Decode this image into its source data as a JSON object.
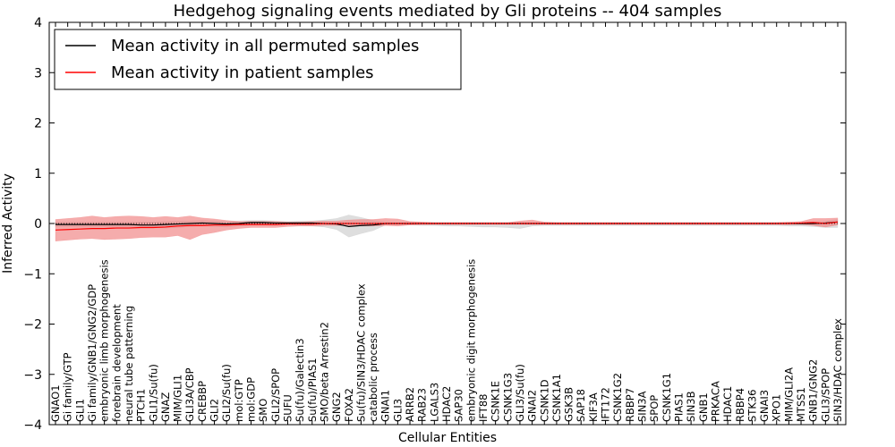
{
  "chart_data": {
    "type": "line",
    "title": "Hedgehog signaling events mediated by Gli proteins -- 404 samples",
    "xlabel": "Cellular Entities",
    "ylabel": "Inferred Activity",
    "ylim": [
      -4,
      4
    ],
    "yticks": [
      4,
      3,
      2,
      1,
      0,
      -1,
      -2,
      -3,
      -4
    ],
    "ytick_labels": [
      "4",
      "3",
      "2",
      "1",
      "0",
      "−1",
      "−2",
      "−3",
      "−4"
    ],
    "legend_position": "top-left",
    "categories": [
      "GNAO1",
      "Gi family/GTP",
      "GLI1",
      "Gi family/GNB1/GNG2/GDP",
      "embryonic limb morphogenesis",
      "forebrain development",
      "neural tube patterning",
      "PTCH1",
      "GLI1/Su(fu)",
      "GNAZ",
      "MIM/GLI1",
      "GLI3A/CBP",
      "CREBBP",
      "GLI2",
      "GLI2/Su(fu)",
      "mol:GTP",
      "mol:GDP",
      "SMO",
      "GLI2/SPOP",
      "SUFU",
      "Su(fu)/Galectin3",
      "Su(fu)/PIAS1",
      "SMO/beta Arrestin2",
      "GNG2",
      "FOXA2",
      "Su(fu)/SIN3/HDAC complex",
      "catabolic process",
      "GNAI1",
      "GLI3",
      "ARRB2",
      "RAB23",
      "LGALS3",
      "HDAC2",
      "SAP30",
      "embryonic digit morphogenesis",
      "IFT88",
      "CSNK1E",
      "CSNK1G3",
      "GLI3/Su(fu)",
      "GNAI2",
      "CSNK1D",
      "CSNK1A1",
      "GSK3B",
      "SAP18",
      "KIF3A",
      "IFT172",
      "CSNK1G2",
      "RBBP7",
      "SIN3A",
      "SPOP",
      "CSNK1G1",
      "PIAS1",
      "SIN3B",
      "GNB1",
      "PRKACA",
      "HDAC1",
      "RBBP4",
      "STK36",
      "GNAI3",
      "XPO1",
      "MIM/GLI2A",
      "MTSS1",
      "GNB1/GNG2",
      "GLI3/SPOP",
      "SIN3/HDAC complex"
    ],
    "series": [
      {
        "name": "Mean activity in all permuted samples",
        "color": "#000000",
        "values": [
          -0.02,
          -0.02,
          -0.02,
          -0.02,
          -0.02,
          -0.02,
          -0.02,
          -0.03,
          -0.03,
          -0.02,
          -0.01,
          0.0,
          0.01,
          0.0,
          -0.01,
          0.0,
          0.02,
          0.02,
          0.01,
          0.01,
          0.01,
          0.01,
          0.0,
          -0.01,
          -0.06,
          -0.04,
          -0.03,
          0.0,
          0.0,
          0.0,
          0.0,
          0.0,
          0.0,
          0.0,
          0.0,
          0.0,
          0.0,
          0.0,
          0.0,
          0.0,
          0.0,
          0.0,
          0.0,
          0.0,
          0.0,
          0.0,
          0.0,
          0.0,
          0.0,
          0.0,
          0.0,
          0.0,
          0.0,
          0.0,
          0.0,
          0.0,
          0.0,
          0.0,
          0.0,
          0.0,
          0.0,
          0.0,
          0.0,
          0.01,
          0.03
        ],
        "band": {
          "color": "#c8c8c8",
          "upper": [
            0.03,
            0.03,
            0.03,
            0.03,
            0.03,
            0.03,
            0.03,
            0.03,
            0.03,
            0.04,
            0.05,
            0.05,
            0.06,
            0.05,
            0.04,
            0.05,
            0.06,
            0.06,
            0.05,
            0.04,
            0.05,
            0.05,
            0.07,
            0.1,
            0.17,
            0.12,
            0.06,
            0.03,
            0.02,
            0.02,
            0.02,
            0.02,
            0.02,
            0.02,
            0.02,
            0.02,
            0.02,
            0.02,
            0.02,
            0.02,
            0.02,
            0.02,
            0.02,
            0.02,
            0.02,
            0.02,
            0.02,
            0.02,
            0.02,
            0.02,
            0.02,
            0.02,
            0.02,
            0.02,
            0.02,
            0.02,
            0.02,
            0.02,
            0.02,
            0.02,
            0.02,
            0.02,
            0.03,
            0.05,
            0.08
          ],
          "lower": [
            -0.07,
            -0.07,
            -0.07,
            -0.07,
            -0.07,
            -0.07,
            -0.07,
            -0.07,
            -0.08,
            -0.09,
            -0.08,
            -0.06,
            -0.05,
            -0.06,
            -0.07,
            -0.05,
            -0.03,
            -0.03,
            -0.04,
            -0.03,
            -0.04,
            -0.05,
            -0.07,
            -0.12,
            -0.27,
            -0.2,
            -0.14,
            -0.03,
            -0.02,
            -0.03,
            -0.04,
            -0.04,
            -0.05,
            -0.05,
            -0.06,
            -0.07,
            -0.07,
            -0.08,
            -0.1,
            -0.05,
            -0.04,
            -0.04,
            -0.04,
            -0.04,
            -0.04,
            -0.04,
            -0.04,
            -0.04,
            -0.04,
            -0.04,
            -0.04,
            -0.04,
            -0.04,
            -0.04,
            -0.04,
            -0.04,
            -0.04,
            -0.04,
            -0.04,
            -0.04,
            -0.05,
            -0.05,
            -0.06,
            -0.08,
            -0.08
          ]
        }
      },
      {
        "name": "Mean activity in patient samples",
        "color": "#ff0000",
        "values": [
          -0.13,
          -0.12,
          -0.11,
          -0.1,
          -0.1,
          -0.09,
          -0.09,
          -0.08,
          -0.08,
          -0.07,
          -0.05,
          -0.04,
          -0.04,
          -0.03,
          -0.03,
          -0.02,
          -0.02,
          -0.02,
          -0.02,
          -0.01,
          -0.01,
          -0.01,
          0.0,
          0.0,
          0.0,
          0.0,
          0.0,
          0.0,
          0.0,
          0.0,
          0.0,
          0.0,
          0.0,
          0.0,
          0.0,
          0.0,
          0.0,
          0.0,
          0.0,
          0.0,
          0.0,
          0.0,
          0.0,
          0.0,
          0.0,
          0.0,
          0.0,
          0.0,
          0.0,
          0.0,
          0.0,
          0.0,
          0.0,
          0.0,
          0.0,
          0.0,
          0.0,
          0.0,
          0.0,
          0.0,
          0.0,
          0.01,
          0.02,
          0.0,
          0.03
        ],
        "band": {
          "color": "#f08080",
          "upper": [
            0.08,
            0.1,
            0.12,
            0.15,
            0.12,
            0.14,
            0.15,
            0.14,
            0.12,
            0.14,
            0.12,
            0.15,
            0.11,
            0.09,
            0.06,
            0.04,
            0.04,
            0.04,
            0.04,
            0.03,
            0.03,
            0.04,
            0.05,
            0.05,
            0.07,
            0.08,
            0.08,
            0.1,
            0.09,
            0.04,
            0.03,
            0.02,
            0.02,
            0.02,
            0.02,
            0.02,
            0.02,
            0.02,
            0.05,
            0.07,
            0.03,
            0.02,
            0.02,
            0.02,
            0.02,
            0.02,
            0.02,
            0.02,
            0.02,
            0.02,
            0.02,
            0.02,
            0.02,
            0.02,
            0.02,
            0.02,
            0.02,
            0.02,
            0.02,
            0.02,
            0.03,
            0.04,
            0.1,
            0.1,
            0.11
          ],
          "lower": [
            -0.35,
            -0.33,
            -0.31,
            -0.3,
            -0.32,
            -0.31,
            -0.3,
            -0.28,
            -0.27,
            -0.27,
            -0.24,
            -0.32,
            -0.22,
            -0.18,
            -0.13,
            -0.1,
            -0.08,
            -0.08,
            -0.08,
            -0.06,
            -0.05,
            -0.05,
            -0.04,
            -0.04,
            -0.04,
            -0.05,
            -0.05,
            -0.04,
            -0.05,
            -0.03,
            -0.02,
            -0.02,
            -0.02,
            -0.02,
            -0.02,
            -0.02,
            -0.02,
            -0.02,
            -0.02,
            -0.02,
            -0.02,
            -0.02,
            -0.02,
            -0.02,
            -0.02,
            -0.02,
            -0.02,
            -0.02,
            -0.02,
            -0.02,
            -0.02,
            -0.02,
            -0.02,
            -0.02,
            -0.02,
            -0.02,
            -0.02,
            -0.02,
            -0.02,
            -0.02,
            -0.02,
            -0.02,
            -0.04,
            -0.07,
            -0.03
          ]
        }
      }
    ]
  }
}
